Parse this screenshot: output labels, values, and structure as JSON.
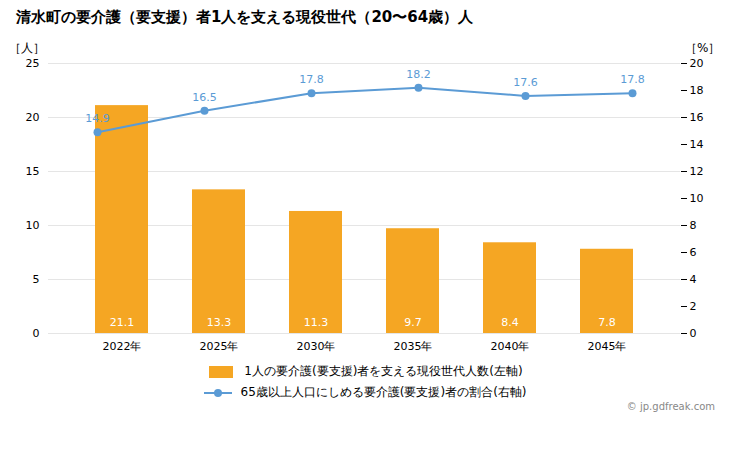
{
  "chart_data": {
    "type": "bar",
    "title": "清水町の要介護（要支援）者1人を支える現役世代（20〜64歳）人",
    "categories": [
      "2022年",
      "2025年",
      "2030年",
      "2035年",
      "2040年",
      "2045年"
    ],
    "series": [
      {
        "name": "1人の要介護(要支援)者を支える現役世代人数(左軸)",
        "type": "bar",
        "color": "#f5a623",
        "values": [
          21.1,
          13.3,
          11.3,
          9.7,
          8.4,
          7.8
        ]
      },
      {
        "name": "65歳以上人口にしめる要介護(要支援)者の割合(右軸)",
        "type": "line",
        "axis": "y2",
        "color": "#5b9bd5",
        "marker": "circle",
        "line_style": "solid",
        "values": [
          14.9,
          16.5,
          17.8,
          18.2,
          17.6,
          17.8
        ]
      }
    ],
    "ylabel": "［人］",
    "y2label": "［%］",
    "ylim": [
      0,
      25
    ],
    "yticks": [
      0,
      5,
      10,
      15,
      20,
      25
    ],
    "y2lim": [
      0.0,
      20.0
    ],
    "y2ticks": [
      0,
      2,
      4,
      6,
      8,
      10,
      12,
      14,
      16,
      18,
      20
    ],
    "grid": true,
    "data_labels": true,
    "legend": "bottom",
    "annotations": [
      "© jp.gdfreak.com"
    ]
  }
}
